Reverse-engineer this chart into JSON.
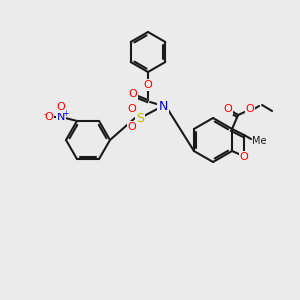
{
  "bg_color": "#ebebeb",
  "bond_color": "#1a1a1a",
  "atom_colors": {
    "O": "#ff0000",
    "N": "#0000cc",
    "S": "#bbbb00",
    "C": "#1a1a1a"
  },
  "figsize": [
    3.0,
    3.0
  ],
  "dpi": 100
}
